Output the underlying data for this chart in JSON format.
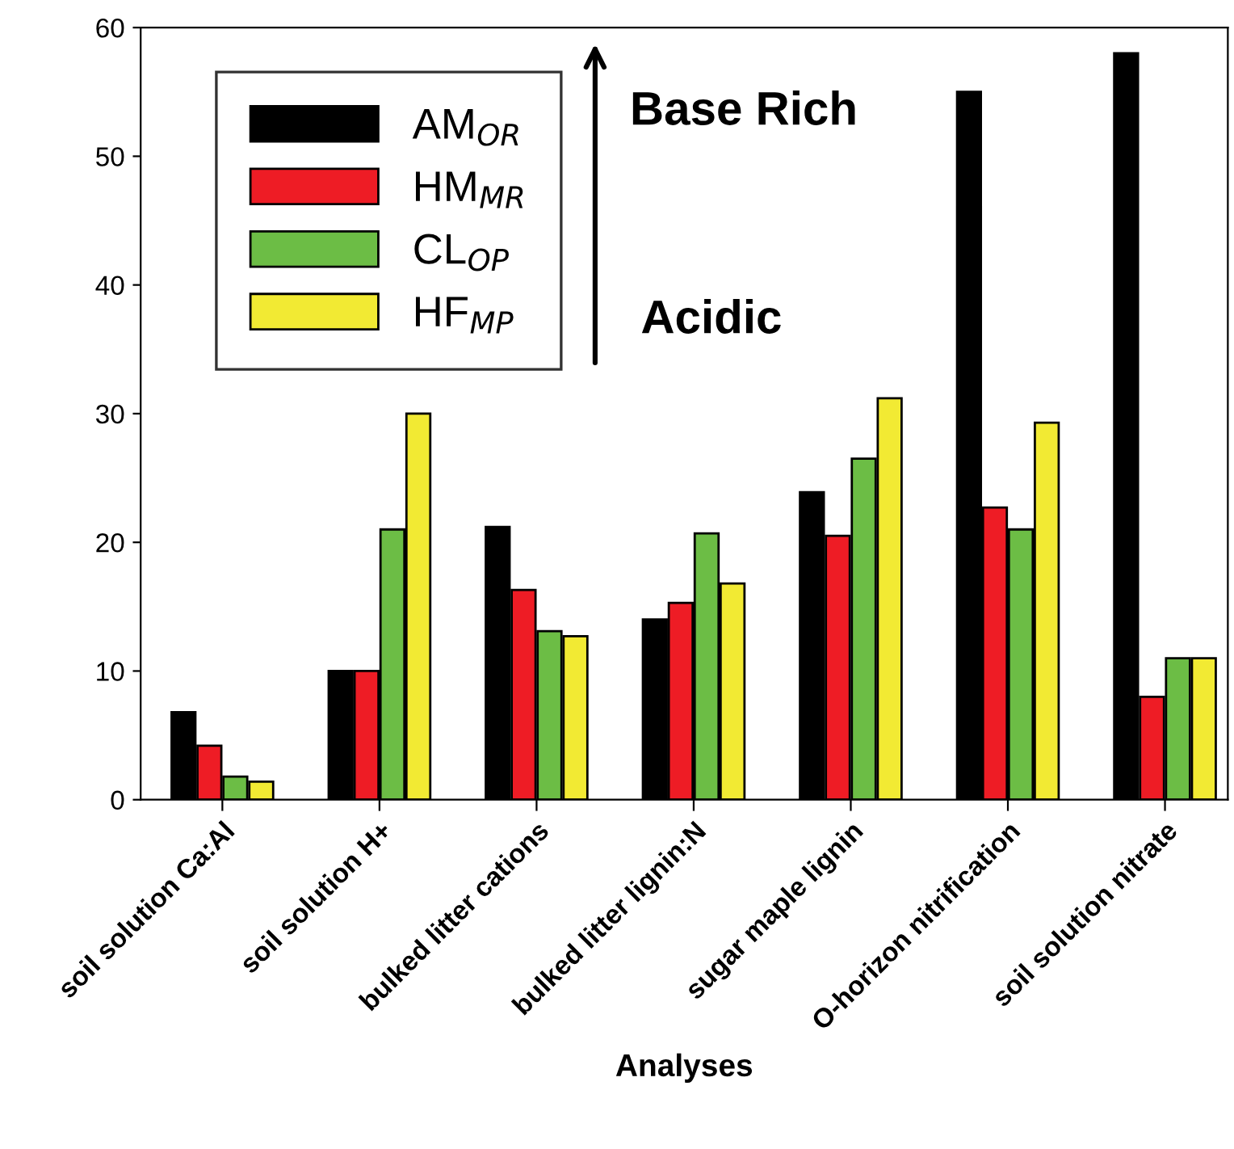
{
  "chart_data": {
    "type": "bar",
    "xlabel": "Analyses",
    "categories": [
      "soil solution Ca:Al",
      "soil solution H+",
      "bulked litter cations",
      "bulked litter lignin:N",
      "sugar maple lignin",
      "O-horizon nitrification",
      "soil solution nitrate"
    ],
    "series": [
      {
        "name": "AM$_{OR}$",
        "color": "#000000",
        "values": [
          6.8,
          10,
          21.2,
          14,
          23.9,
          55,
          58
        ]
      },
      {
        "name": "HM$_{MR}$",
        "color": "#ee1c25",
        "values": [
          4.2,
          10,
          16.3,
          15.3,
          20.5,
          22.7,
          8
        ]
      },
      {
        "name": "CL$_{OP}$",
        "color": "#6cbd45",
        "values": [
          1.8,
          21,
          13.1,
          20.7,
          26.5,
          21,
          11
        ]
      },
      {
        "name": "HF$_{MP}$",
        "color": "#f2ea33",
        "values": [
          1.4,
          30,
          12.7,
          16.8,
          31.2,
          29.3,
          11
        ]
      }
    ],
    "ylim": [
      0,
      60
    ],
    "yticks": [
      0,
      10,
      20,
      30,
      40,
      50,
      60
    ],
    "grid": false,
    "legend": "top left",
    "annotations": [
      "Base Rich",
      "Acidic"
    ]
  }
}
